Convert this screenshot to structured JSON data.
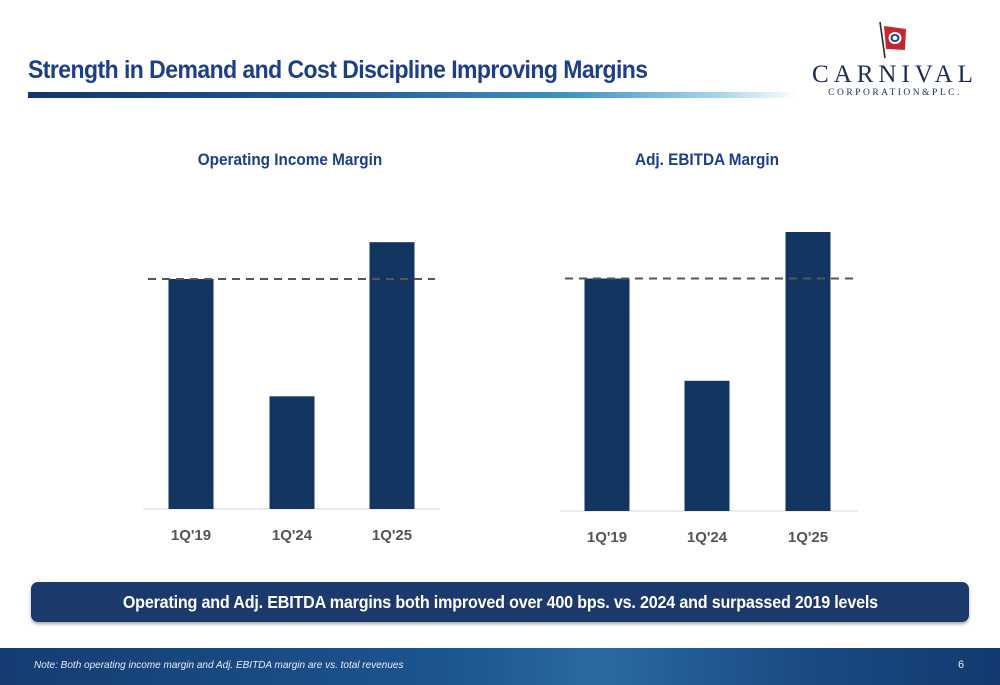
{
  "header": {
    "title": "Strength in Demand and Cost Discipline Improving Margins",
    "logo_text": "CARNIVAL",
    "logo_subtext": "CORPORATION&PLC."
  },
  "colors": {
    "bar": "#12365f",
    "title": "#1c3f85",
    "banner": "#1b3a6b",
    "reference_line": "#555555"
  },
  "chart_data": [
    {
      "type": "bar",
      "title": "Operating Income Margin",
      "categories": [
        "1Q'19",
        "1Q'24",
        "1Q'25"
      ],
      "values": [
        100,
        49,
        116
      ],
      "ylim": [
        0,
        120
      ],
      "reference_line": {
        "value": 100,
        "style": "dashed"
      },
      "grid": false,
      "legend": "none"
    },
    {
      "type": "bar",
      "title": "Adj. EBITDA Margin",
      "categories": [
        "1Q'19",
        "1Q'24",
        "1Q'25"
      ],
      "values": [
        100,
        56,
        120
      ],
      "ylim": [
        0,
        120
      ],
      "reference_line": {
        "value": 100,
        "style": "dashed"
      },
      "grid": false,
      "legend": "none"
    }
  ],
  "banner": {
    "text": "Operating and Adj. EBITDA margins both improved over 400 bps. vs. 2024 and surpassed 2019 levels"
  },
  "footer": {
    "note": "Note: Both operating income margin and Adj. EBITDA margin are vs. total revenues",
    "page_number": "6"
  }
}
